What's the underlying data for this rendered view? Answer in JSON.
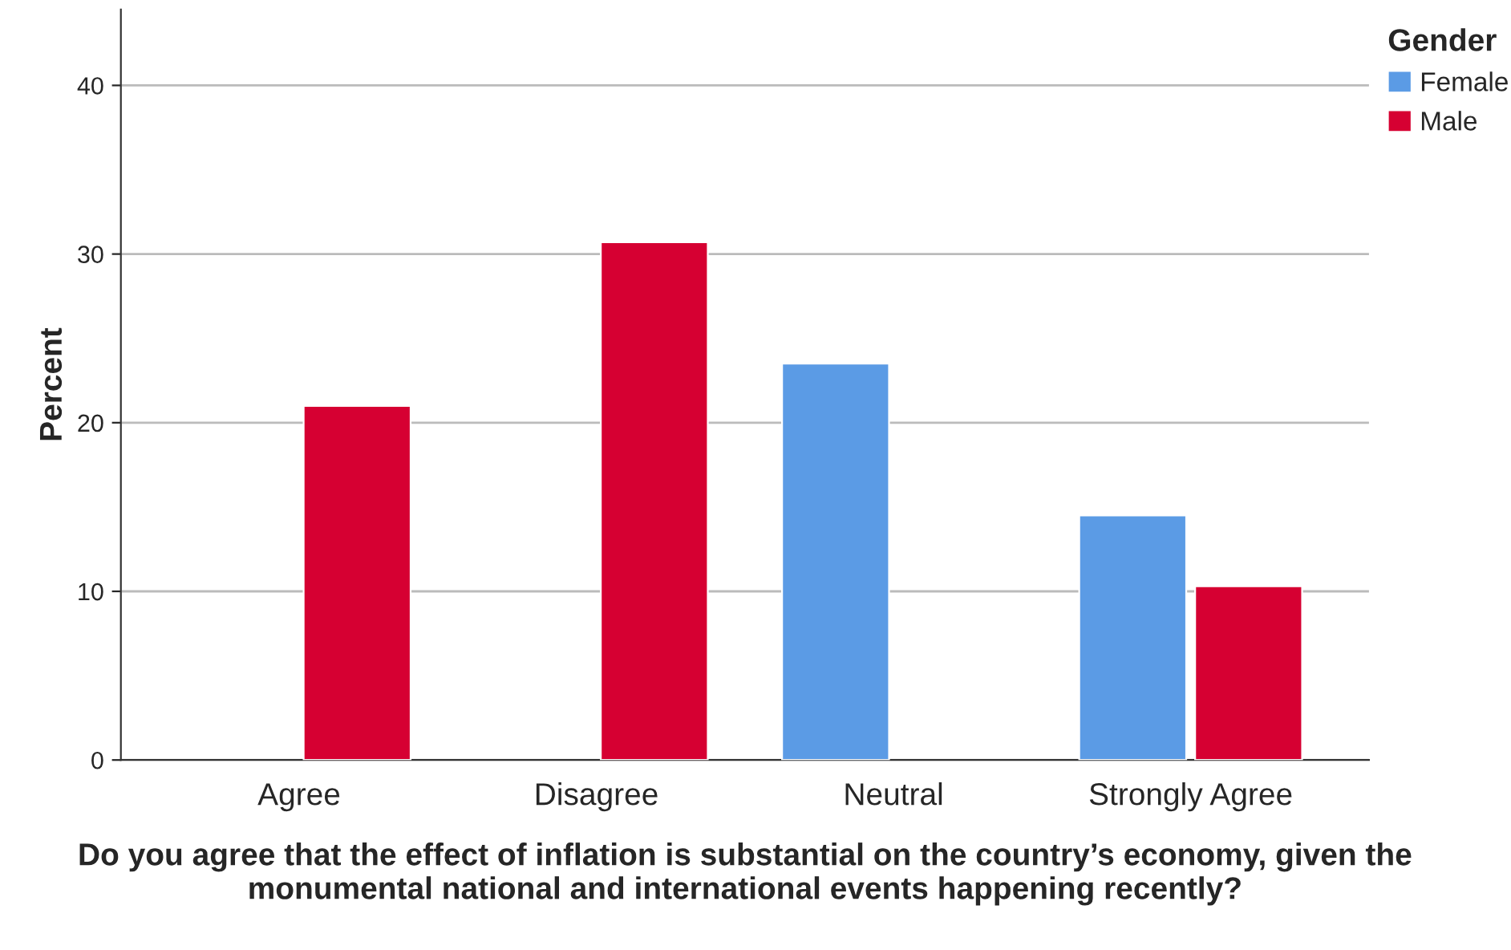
{
  "chart_data": {
    "type": "bar",
    "xlabel": "Do you agree that the effect of inflation is substantial on the country’s economy, given the monumental national and international events happening recently?",
    "ylabel": "Percent",
    "legend_title": "Gender",
    "categories": [
      "Agree",
      "Disagree",
      "Neutral",
      "Strongly Agree"
    ],
    "series": [
      {
        "name": "Female",
        "color": "#5b9be5",
        "values": [
          null,
          null,
          23.5,
          14.5
        ]
      },
      {
        "name": "Male",
        "color": "#d60032",
        "values": [
          21.0,
          30.7,
          null,
          10.3
        ]
      }
    ],
    "ylim": [
      0,
      44.5
    ],
    "yticks": [
      0,
      10,
      20,
      30,
      40
    ],
    "grid": "y",
    "legend": "top right"
  }
}
